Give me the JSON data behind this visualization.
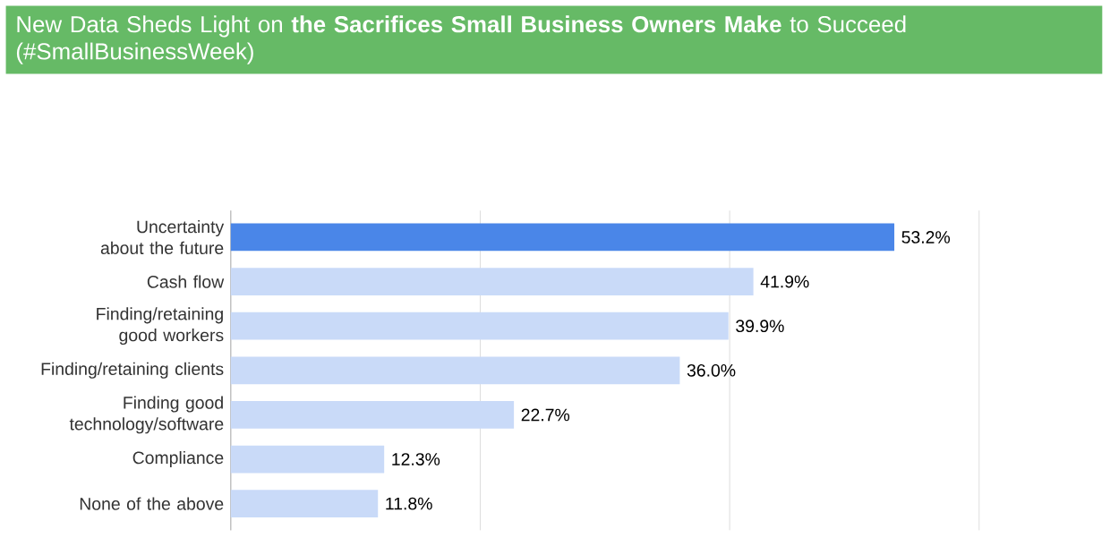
{
  "chart_data": {
    "type": "bar",
    "orientation": "horizontal",
    "title": "New Data Sheds Light on **the Sacrifices Small Business Owners Make** to Succeed (#SmallBusinessWeek)",
    "categories": [
      "Uncertainty about the future",
      "Cash flow",
      "Finding/retaining good workers",
      "Finding/retaining clients",
      "Finding good technology/software",
      "Compliance",
      "None of the above"
    ],
    "values": [
      53.2,
      41.9,
      39.9,
      36.0,
      22.7,
      12.3,
      11.8
    ],
    "colors": [
      "#4a86e8",
      "#c9daf8",
      "#c9daf8",
      "#c9daf8",
      "#c9daf8",
      "#c9daf8",
      "#c9daf8"
    ],
    "value_labels": [
      "53.2%",
      "41.9%",
      "39.9%",
      "36.0%",
      "22.7%",
      "12.3%",
      "11.8%"
    ],
    "xlim": [
      0,
      60
    ],
    "xticks": [
      {
        "value": 0,
        "label": null
      },
      {
        "value": 20,
        "label": null
      },
      {
        "value": 40,
        "label": null
      },
      {
        "value": 60,
        "label": null
      }
    ],
    "grid": "x",
    "tick_labels": "y"
  }
}
